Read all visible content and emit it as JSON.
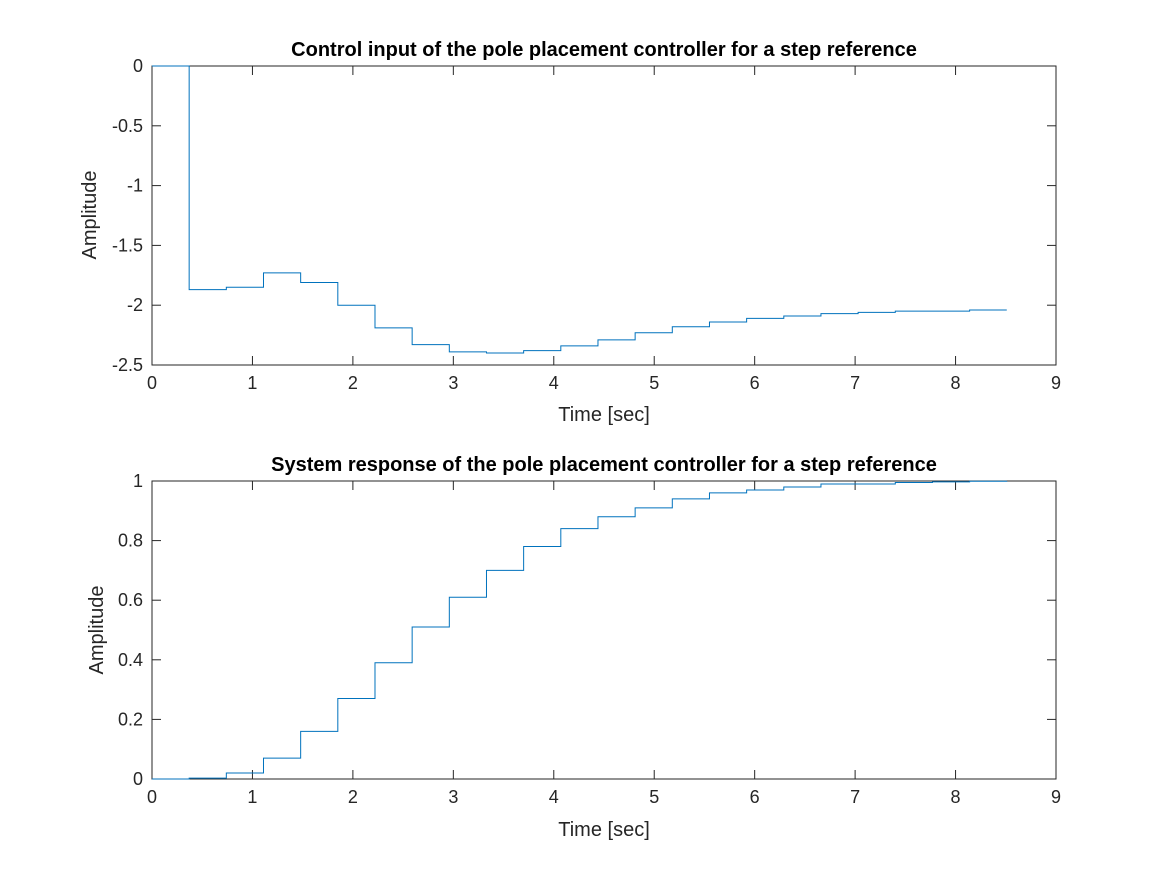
{
  "colors": {
    "series": "#0072bd",
    "axis": "#262626",
    "background": "#ffffff"
  },
  "chart_data": [
    {
      "type": "line",
      "style": "step",
      "title": "Control input of the pole placement controller for a step reference",
      "xlabel": "Time [sec]",
      "ylabel": "Amplitude",
      "xlim": [
        0,
        9
      ],
      "ylim": [
        -2.5,
        0
      ],
      "xticks": [
        0,
        1,
        2,
        3,
        4,
        5,
        6,
        7,
        8,
        9
      ],
      "xtick_labels": [
        "0",
        "1",
        "2",
        "3",
        "4",
        "5",
        "6",
        "7",
        "8",
        "9"
      ],
      "yticks": [
        -2.5,
        -2,
        -1.5,
        -1,
        -0.5,
        0
      ],
      "ytick_labels": [
        "-2.5",
        "-2",
        "-1.5",
        "-1",
        "-0.5",
        "0"
      ],
      "grid": false,
      "series": [
        {
          "x": [
            0,
            0.37,
            0.74,
            1.11,
            1.48,
            1.85,
            2.22,
            2.59,
            2.96,
            3.33,
            3.7,
            4.07,
            4.44,
            4.81,
            5.18,
            5.55,
            5.92,
            6.29,
            6.66,
            7.03,
            7.4,
            7.77,
            8.14,
            8.51
          ],
          "y": [
            0,
            -1.87,
            -1.85,
            -1.73,
            -1.81,
            -2.0,
            -2.19,
            -2.33,
            -2.39,
            -2.4,
            -2.38,
            -2.34,
            -2.29,
            -2.23,
            -2.18,
            -2.14,
            -2.11,
            -2.09,
            -2.07,
            -2.06,
            -2.05,
            -2.05,
            -2.04,
            -2.04
          ]
        }
      ]
    },
    {
      "type": "line",
      "style": "step",
      "title": "System response of the pole placement controller for a step reference",
      "xlabel": "Time [sec]",
      "ylabel": "Amplitude",
      "xlim": [
        0,
        9
      ],
      "ylim": [
        0,
        1
      ],
      "xticks": [
        0,
        1,
        2,
        3,
        4,
        5,
        6,
        7,
        8,
        9
      ],
      "xtick_labels": [
        "0",
        "1",
        "2",
        "3",
        "4",
        "5",
        "6",
        "7",
        "8",
        "9"
      ],
      "yticks": [
        0,
        0.2,
        0.4,
        0.6,
        0.8,
        1
      ],
      "ytick_labels": [
        "0",
        "0.2",
        "0.4",
        "0.6",
        "0.8",
        "1"
      ],
      "grid": false,
      "series": [
        {
          "x": [
            0,
            0.37,
            0.74,
            1.11,
            1.48,
            1.85,
            2.22,
            2.59,
            2.96,
            3.33,
            3.7,
            4.07,
            4.44,
            4.81,
            5.18,
            5.55,
            5.92,
            6.29,
            6.66,
            7.03,
            7.4,
            7.77,
            8.14,
            8.51
          ],
          "y": [
            0,
            0.003,
            0.02,
            0.07,
            0.16,
            0.27,
            0.39,
            0.51,
            0.61,
            0.7,
            0.78,
            0.84,
            0.88,
            0.91,
            0.94,
            0.96,
            0.97,
            0.98,
            0.99,
            0.99,
            0.995,
            0.997,
            0.999,
            1.0
          ]
        }
      ]
    }
  ]
}
